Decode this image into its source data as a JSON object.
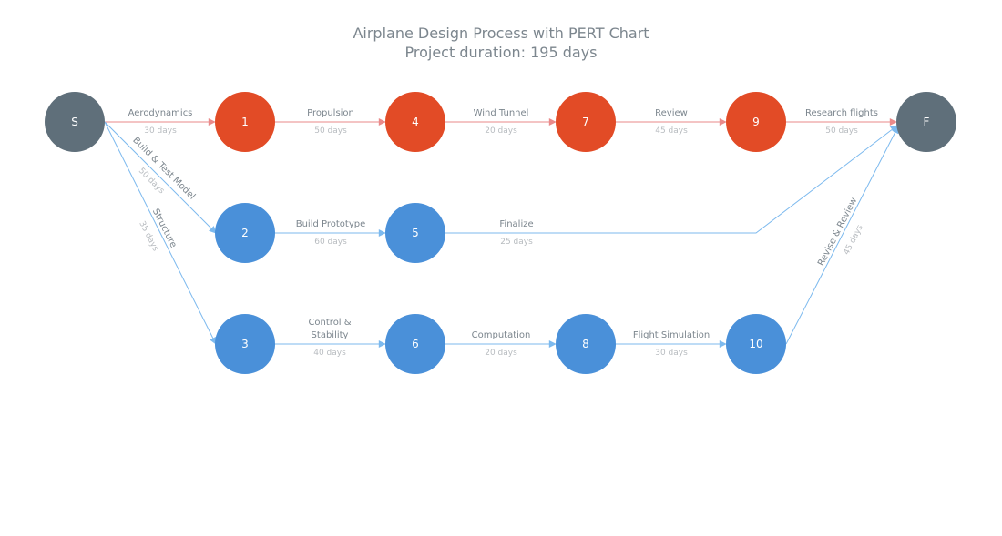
{
  "title": {
    "line1": "Airplane Design Process with PERT Chart",
    "line2": "Project duration: 195 days"
  },
  "colors": {
    "critical_node": "#e24b26",
    "normal_node": "#4a90d9",
    "milestone_node": "#5f6f7a",
    "critical_edge": "#ea8a8a",
    "normal_edge": "#7cb9ee"
  },
  "nodes": [
    {
      "id": "S",
      "label": "S",
      "type": "milestone"
    },
    {
      "id": "1",
      "label": "1",
      "type": "critical"
    },
    {
      "id": "4",
      "label": "4",
      "type": "critical"
    },
    {
      "id": "7",
      "label": "7",
      "type": "critical"
    },
    {
      "id": "9",
      "label": "9",
      "type": "critical"
    },
    {
      "id": "F",
      "label": "F",
      "type": "milestone"
    },
    {
      "id": "2",
      "label": "2",
      "type": "normal"
    },
    {
      "id": "5",
      "label": "5",
      "type": "normal"
    },
    {
      "id": "3",
      "label": "3",
      "type": "normal"
    },
    {
      "id": "6",
      "label": "6",
      "type": "normal"
    },
    {
      "id": "8",
      "label": "8",
      "type": "normal"
    },
    {
      "id": "10",
      "label": "10",
      "type": "normal"
    }
  ],
  "tasks": [
    {
      "from": "S",
      "to": "1",
      "name": [
        "Aerodynamics"
      ],
      "duration": "30 days",
      "critical": true
    },
    {
      "from": "1",
      "to": "4",
      "name": [
        "Propulsion"
      ],
      "duration": "50 days",
      "critical": true
    },
    {
      "from": "4",
      "to": "7",
      "name": [
        "Wind Tunnel"
      ],
      "duration": "20 days",
      "critical": true
    },
    {
      "from": "7",
      "to": "9",
      "name": [
        "Review"
      ],
      "duration": "45 days",
      "critical": true
    },
    {
      "from": "9",
      "to": "F",
      "name": [
        "Research flights"
      ],
      "duration": "50 days",
      "critical": true
    },
    {
      "from": "S",
      "to": "2",
      "name": [
        "Build & Test Model"
      ],
      "duration": "50 days",
      "critical": false
    },
    {
      "from": "S",
      "to": "3",
      "name": [
        "Structure"
      ],
      "duration": "35 days",
      "critical": false
    },
    {
      "from": "2",
      "to": "5",
      "name": [
        "Build Prototype"
      ],
      "duration": "60 days",
      "critical": false
    },
    {
      "from": "5",
      "to": "F",
      "name": [
        "Finalize"
      ],
      "duration": "25 days",
      "critical": false
    },
    {
      "from": "3",
      "to": "6",
      "name": [
        "Control &",
        "Stability"
      ],
      "duration": "40 days",
      "critical": false
    },
    {
      "from": "6",
      "to": "8",
      "name": [
        "Computation"
      ],
      "duration": "20 days",
      "critical": false
    },
    {
      "from": "8",
      "to": "10",
      "name": [
        "Flight Simulation"
      ],
      "duration": "30 days",
      "critical": false
    },
    {
      "from": "10",
      "to": "F",
      "name": [
        "Revise & Review"
      ],
      "duration": "45 days",
      "critical": false
    }
  ]
}
